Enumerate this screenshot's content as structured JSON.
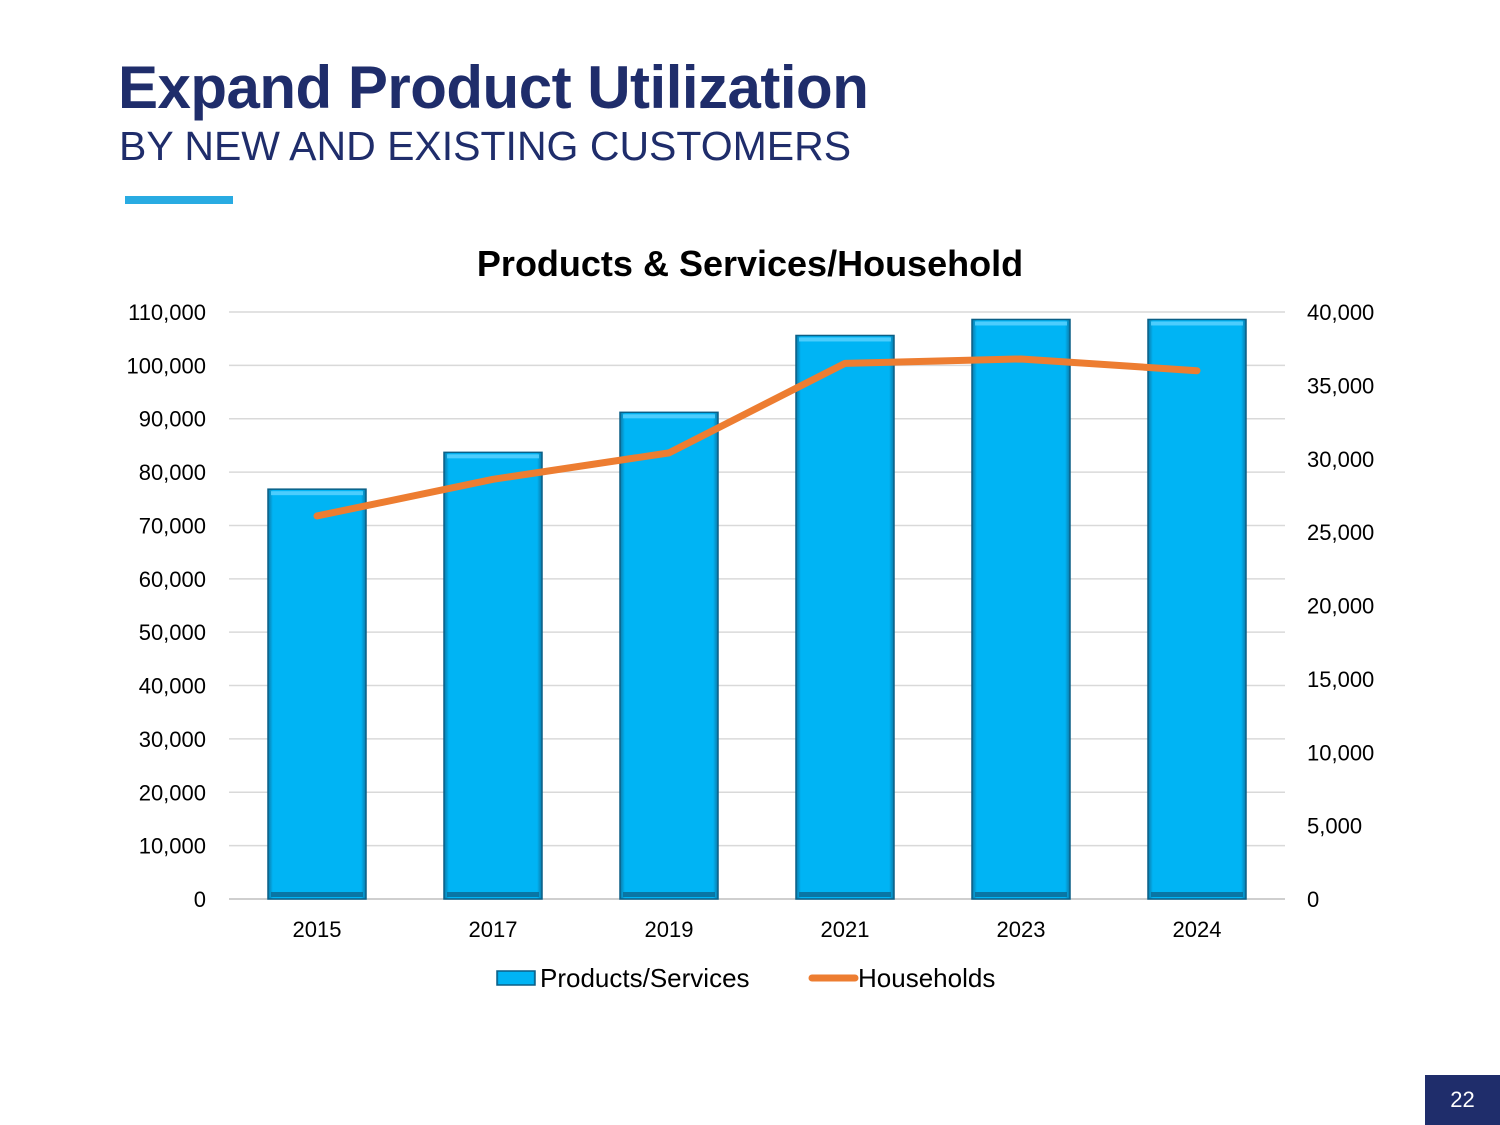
{
  "slide": {
    "title": "Expand Product Utilization",
    "subtitle": "BY NEW AND EXISTING CUSTOMERS",
    "page_number": "22",
    "accent_color": "#29abe2",
    "title_color": "#1f2d6b"
  },
  "chart_data": {
    "type": "bar",
    "title": "Products & Services/Household",
    "categories": [
      "2015",
      "2017",
      "2019",
      "2021",
      "2023",
      "2024"
    ],
    "series": [
      {
        "name": "Products/Services",
        "kind": "bar",
        "axis": "left",
        "color": "#00b0f0",
        "values": [
          76800,
          83700,
          91200,
          105600,
          108600,
          108600
        ]
      },
      {
        "name": "Households",
        "kind": "line",
        "axis": "right",
        "color": "#ed7d31",
        "values": [
          26100,
          28600,
          30400,
          36500,
          36800,
          36000
        ]
      }
    ],
    "y_left": {
      "range": [
        0,
        110000
      ],
      "ticks": [
        "0",
        "10,000",
        "20,000",
        "30,000",
        "40,000",
        "50,000",
        "60,000",
        "70,000",
        "80,000",
        "90,000",
        "100,000",
        "110,000"
      ]
    },
    "y_right": {
      "range": [
        0,
        40000
      ],
      "ticks": [
        "0",
        "5,000",
        "10,000",
        "15,000",
        "20,000",
        "25,000",
        "30,000",
        "35,000",
        "40,000"
      ]
    },
    "legend": "bottom",
    "grid": true
  }
}
